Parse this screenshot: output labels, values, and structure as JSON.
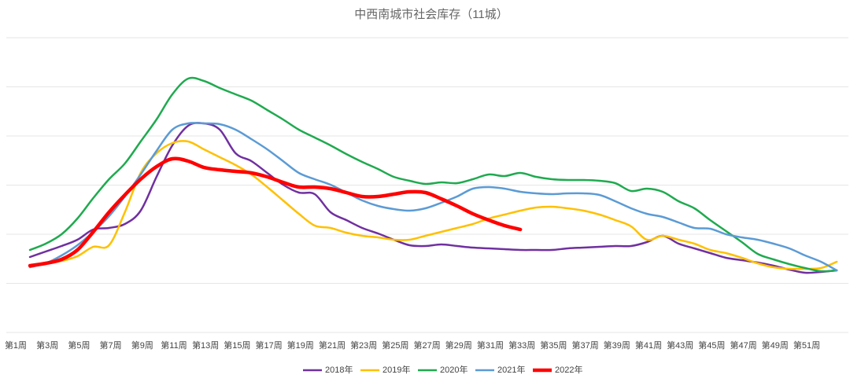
{
  "chart_data": {
    "type": "line",
    "title": "中西南城市社会库存（11城）",
    "categories": [
      "第1周",
      null,
      "第3周",
      null,
      "第5周",
      null,
      "第7周",
      null,
      "第9周",
      null,
      "第11周",
      null,
      "第13周",
      null,
      "第15周",
      null,
      "第17周",
      null,
      "第19周",
      null,
      "第21周",
      null,
      "第23周",
      null,
      "第25周",
      null,
      "第27周",
      null,
      "第29周",
      null,
      "第31周",
      null,
      "第33周",
      null,
      "第35周",
      null,
      "第37周",
      null,
      "第39周",
      null,
      "第41周",
      null,
      "第43周",
      null,
      "第45周",
      null,
      "第47周",
      null,
      "第49周",
      null,
      "第51周",
      null
    ],
    "ylim": [
      0,
      375
    ],
    "yticks": [
      0,
      62.5,
      125,
      187.5,
      250,
      312.5,
      375
    ],
    "grid": true,
    "legend": "bottom",
    "series": [
      {
        "name": "2018年",
        "color": "#7030a0",
        "values": [
          96,
          103,
          110,
          118,
          131,
          133,
          138,
          155,
          198,
          238,
          263,
          266,
          258,
          228,
          218,
          203,
          188,
          178,
          176,
          153,
          143,
          133,
          126,
          118,
          111,
          110,
          112,
          110,
          108,
          107,
          106,
          105,
          105,
          105,
          107,
          108,
          109,
          110,
          110,
          115,
          123,
          113,
          107,
          101,
          95,
          92,
          89,
          85,
          80,
          76,
          77,
          79
        ]
      },
      {
        "name": "2019年",
        "color": "#ffc000",
        "values": [
          85,
          88,
          91,
          97,
          109,
          111,
          153,
          203,
          228,
          241,
          243,
          233,
          223,
          213,
          201,
          185,
          168,
          151,
          136,
          133,
          127,
          123,
          121,
          118,
          118,
          123,
          128,
          133,
          138,
          145,
          150,
          155,
          159,
          160,
          158,
          155,
          150,
          143,
          135,
          118,
          123,
          118,
          113,
          105,
          101,
          95,
          88,
          83,
          81,
          81,
          82,
          90
        ]
      },
      {
        "name": "2020年",
        "color": "#1faa4f",
        "values": [
          105,
          113,
          125,
          145,
          171,
          195,
          215,
          243,
          271,
          303,
          323,
          320,
          311,
          303,
          295,
          283,
          271,
          258,
          248,
          238,
          227,
          217,
          208,
          198,
          193,
          189,
          191,
          190,
          195,
          201,
          199,
          203,
          198,
          195,
          194,
          194,
          193,
          190,
          180,
          183,
          179,
          167,
          158,
          143,
          129,
          115,
          100,
          93,
          87,
          82,
          78,
          79
        ]
      },
      {
        "name": "2021年",
        "color": "#5b9bd5",
        "values": [
          83,
          88,
          98,
          111,
          128,
          148,
          173,
          201,
          231,
          258,
          266,
          266,
          265,
          258,
          246,
          233,
          218,
          203,
          195,
          188,
          178,
          168,
          161,
          157,
          155,
          158,
          165,
          173,
          183,
          185,
          183,
          179,
          177,
          176,
          177,
          177,
          175,
          167,
          158,
          151,
          147,
          140,
          133,
          132,
          125,
          121,
          118,
          113,
          107,
          98,
          90,
          79
        ]
      },
      {
        "name": "2022年",
        "color": "#ff0000",
        "values": [
          85,
          88,
          93,
          105,
          128,
          153,
          175,
          195,
          211,
          221,
          218,
          210,
          207,
          205,
          203,
          198,
          191,
          185,
          185,
          183,
          178,
          173,
          173,
          176,
          179,
          178,
          170,
          161,
          151,
          143,
          136,
          131,
          null,
          null,
          null,
          null,
          null,
          null,
          null,
          null,
          null,
          null,
          null,
          null,
          null,
          null,
          null,
          null,
          null,
          null,
          null,
          null
        ]
      }
    ]
  }
}
